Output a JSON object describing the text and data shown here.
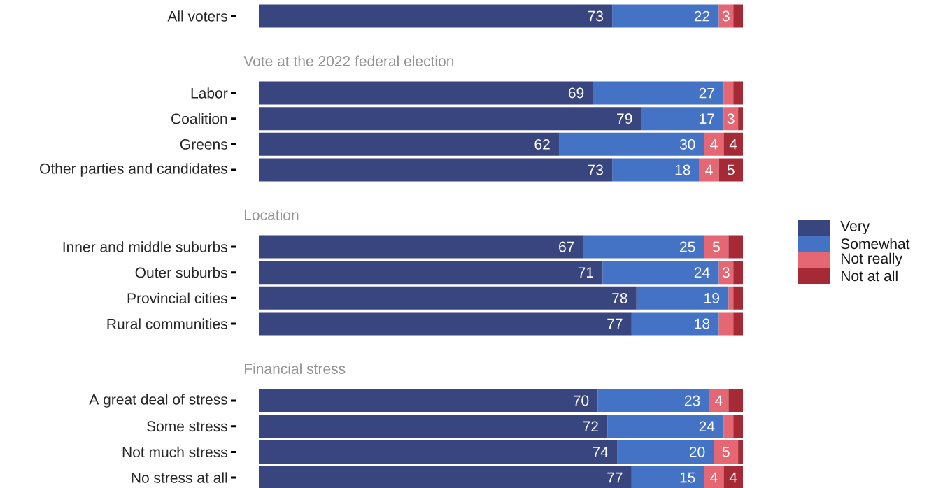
{
  "chart_data": {
    "type": "bar",
    "orientation": "horizontal",
    "stacked": true,
    "legend": "right",
    "categories": [
      "All voters",
      null,
      null,
      "Labor",
      "Coalition",
      "Greens",
      "Other parties and candidates",
      null,
      null,
      "Inner and middle suburbs",
      "Outer suburbs",
      "Provincial cities",
      "Rural communities",
      null,
      null,
      "A great deal of stress",
      "Some stress",
      "Not much stress",
      "No stress at all"
    ],
    "annotations": [
      "Vote at the 2022 federal election",
      "Location",
      "Financial stress"
    ],
    "series": [
      {
        "name": "Very",
        "color": "#39457e",
        "values": [
          73,
          null,
          null,
          69,
          79,
          62,
          73,
          null,
          null,
          67,
          71,
          78,
          77,
          null,
          null,
          70,
          72,
          74,
          77
        ],
        "value_labels": [
          "73",
          null,
          null,
          "69",
          "79",
          "62",
          "73",
          null,
          null,
          "67",
          "71",
          "78",
          "77",
          null,
          null,
          "70",
          "72",
          "74",
          "77"
        ]
      },
      {
        "name": "Somewhat",
        "color": "#4472c4",
        "values": [
          22,
          null,
          null,
          27,
          17,
          30,
          18,
          null,
          null,
          25,
          24,
          19,
          18,
          null,
          null,
          23,
          24,
          20,
          15
        ],
        "value_labels": [
          "22",
          null,
          null,
          "27",
          "17",
          "30",
          "18",
          null,
          null,
          "25",
          "24",
          "19",
          "18",
          null,
          null,
          "23",
          "24",
          "20",
          "15"
        ]
      },
      {
        "name": "Not really",
        "color": "#e46773",
        "values": [
          3,
          null,
          null,
          2,
          3,
          4,
          4,
          null,
          null,
          5,
          3,
          1,
          3,
          null,
          null,
          4,
          2,
          5,
          4
        ],
        "value_labels": [
          "3",
          null,
          null,
          null,
          "3",
          "4",
          "4",
          null,
          null,
          "5",
          "3",
          null,
          null,
          null,
          null,
          "4",
          null,
          "5",
          "4"
        ]
      },
      {
        "name": "Not at all",
        "color": "#a52a36",
        "values": [
          2,
          null,
          null,
          2,
          1,
          4,
          5,
          null,
          null,
          3,
          2,
          2,
          2,
          null,
          null,
          3,
          2,
          1,
          4
        ],
        "value_labels": [
          null,
          null,
          null,
          null,
          null,
          "4",
          "5",
          null,
          null,
          null,
          null,
          null,
          null,
          null,
          null,
          null,
          null,
          null,
          "4"
        ]
      }
    ]
  }
}
